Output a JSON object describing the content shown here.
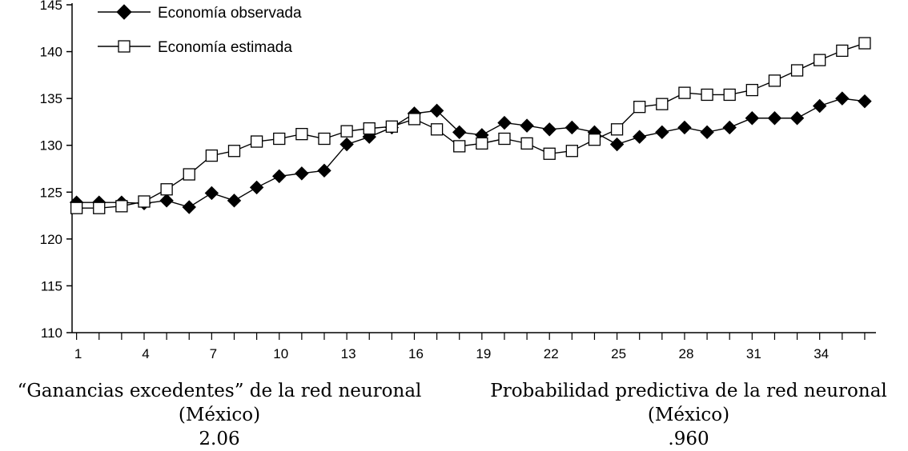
{
  "chart_data": {
    "type": "line",
    "title": "",
    "xlabel": "",
    "ylabel": "",
    "x": [
      1,
      2,
      3,
      4,
      5,
      6,
      7,
      8,
      9,
      10,
      11,
      12,
      13,
      14,
      15,
      16,
      17,
      18,
      19,
      20,
      21,
      22,
      23,
      24,
      25,
      26,
      27,
      28,
      29,
      30,
      31,
      32,
      33,
      34,
      35,
      36
    ],
    "xticks": [
      "1",
      "4",
      "7",
      "10",
      "13",
      "16",
      "19",
      "22",
      "25",
      "28",
      "31",
      "34"
    ],
    "yticks": [
      "110",
      "115",
      "120",
      "125",
      "130",
      "135",
      "140",
      "145"
    ],
    "ylim": [
      110,
      145
    ],
    "xlim": [
      0.8,
      36.5
    ],
    "legend_position": "top-left",
    "series": [
      {
        "name": "Economía observada",
        "marker": "filled-diamond",
        "values": [
          123.9,
          123.9,
          123.9,
          123.8,
          124.1,
          123.4,
          124.9,
          124.1,
          125.5,
          126.7,
          127.0,
          127.3,
          130.1,
          130.9,
          131.9,
          133.4,
          133.7,
          131.4,
          131.1,
          132.4,
          132.1,
          131.7,
          131.9,
          131.4,
          130.1,
          130.9,
          131.4,
          131.9,
          131.4,
          131.9,
          132.9,
          132.9,
          132.9,
          134.2,
          135.0,
          134.7
        ]
      },
      {
        "name": "Economía estimada",
        "marker": "open-square",
        "values": [
          123.3,
          123.3,
          123.5,
          124.0,
          125.3,
          126.9,
          128.9,
          129.4,
          130.4,
          130.7,
          131.2,
          130.7,
          131.5,
          131.8,
          132.0,
          132.8,
          131.7,
          129.9,
          130.2,
          130.7,
          130.2,
          129.1,
          129.4,
          130.6,
          131.7,
          134.1,
          134.4,
          135.6,
          135.4,
          135.4,
          135.9,
          136.9,
          138.0,
          139.1,
          140.1,
          140.9
        ]
      }
    ]
  },
  "captions": {
    "left": {
      "line1": "“Ganancias excedentes” de la red neuronal",
      "line2": "(México)",
      "line3": "2.06"
    },
    "right": {
      "line1": "Probabilidad predictiva de la red neuronal",
      "line2": "(México)",
      "line3": ".960"
    }
  }
}
